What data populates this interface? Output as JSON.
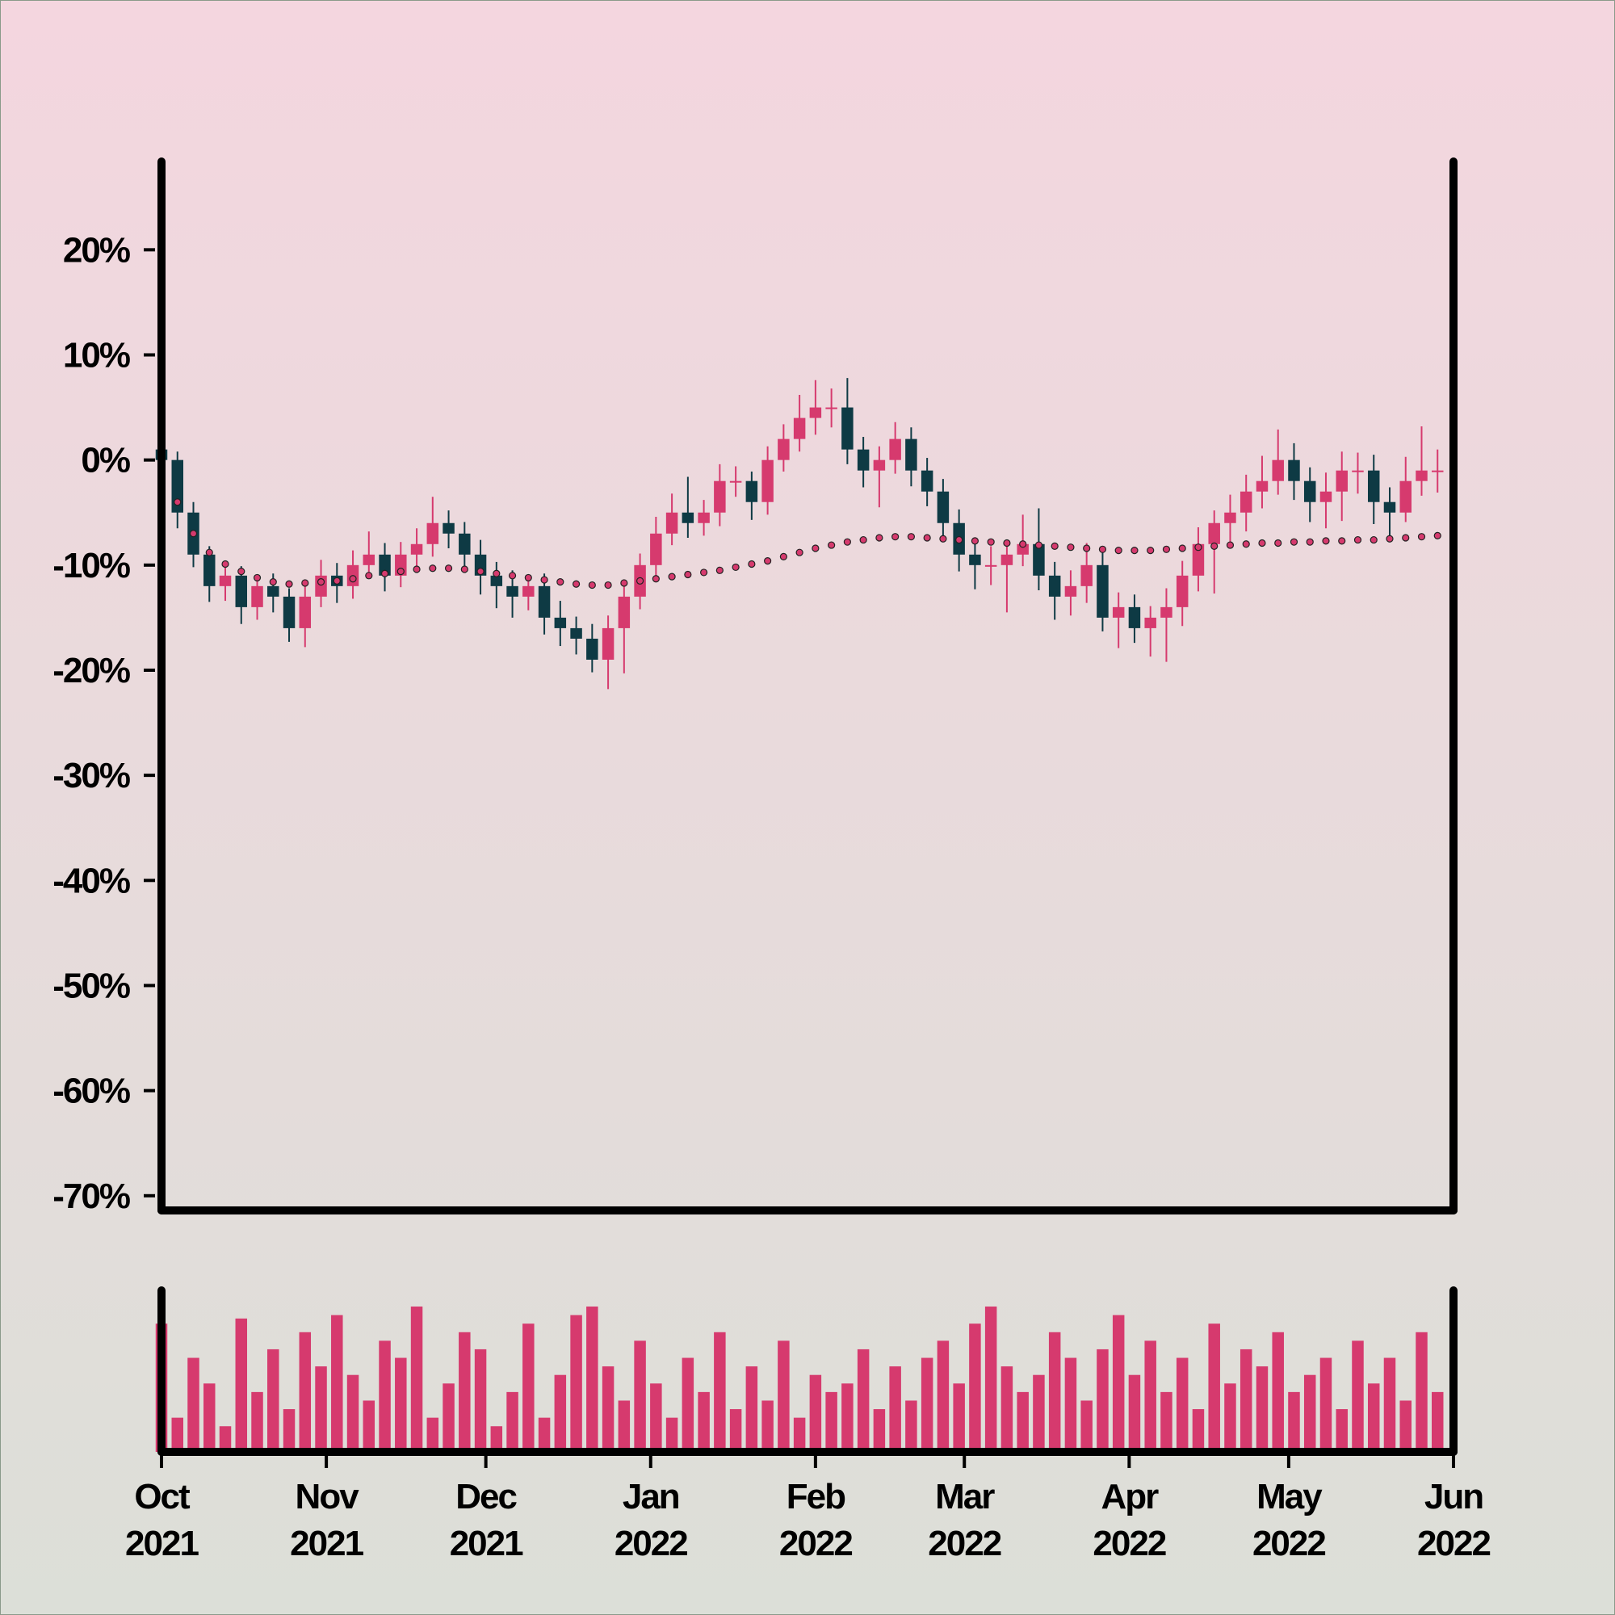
{
  "chart_data": {
    "type": "candlestick",
    "up_color": "#d63a6e",
    "down_color": "#0e3a44",
    "ma_color": "#d63a6e",
    "volume_color": "#d63a6e",
    "ylim": [
      -71.4,
      28.4
    ],
    "yticks": [
      {
        "value": -70,
        "label": "-70%"
      },
      {
        "value": -60,
        "label": "-60%"
      },
      {
        "value": -50,
        "label": "-50%"
      },
      {
        "value": -40,
        "label": "-40%"
      },
      {
        "value": -30,
        "label": "-30%"
      },
      {
        "value": -20,
        "label": "-20%"
      },
      {
        "value": -10,
        "label": "-10%"
      },
      {
        "value": 0,
        "label": "0%"
      },
      {
        "value": 10,
        "label": "10%"
      },
      {
        "value": 20,
        "label": "20%"
      }
    ],
    "xlim": [
      0,
      243
    ],
    "xticks": [
      {
        "value": 0,
        "label": "Oct 2021"
      },
      {
        "value": 31,
        "label": "Nov 2021"
      },
      {
        "value": 61,
        "label": "Dec 2021"
      },
      {
        "value": 92,
        "label": "Jan 2022"
      },
      {
        "value": 123,
        "label": "Feb 2022"
      },
      {
        "value": 151,
        "label": "Mar 2022"
      },
      {
        "value": 182,
        "label": "Apr 2022"
      },
      {
        "value": 212,
        "label": "May 2022"
      },
      {
        "value": 243,
        "label": "Jun 2022"
      }
    ],
    "x": [
      0,
      3,
      6,
      9,
      12,
      15,
      18,
      21,
      24,
      27,
      30,
      33,
      36,
      39,
      42,
      45,
      48,
      51,
      54,
      57,
      60,
      63,
      66,
      69,
      72,
      75,
      78,
      81,
      84,
      87,
      90,
      93,
      96,
      99,
      102,
      105,
      108,
      111,
      114,
      117,
      120,
      123,
      126,
      129,
      132,
      135,
      138,
      141,
      144,
      147,
      150,
      153,
      156,
      159,
      162,
      165,
      168,
      171,
      174,
      177,
      180,
      183,
      186,
      189,
      192,
      195,
      198,
      201,
      204,
      207,
      210,
      213,
      216,
      219,
      222,
      225,
      228,
      231,
      234,
      237,
      240
    ],
    "open": [
      1,
      0,
      -5,
      -9,
      -12,
      -11,
      -14,
      -12,
      -13,
      -16,
      -13,
      -11,
      -12,
      -10,
      -9,
      -11,
      -9,
      -8,
      -6,
      -7,
      -9,
      -11,
      -12,
      -13,
      -12,
      -15,
      -16,
      -17,
      -19,
      -16,
      -13,
      -10,
      -7,
      -5,
      -6,
      -5,
      -2,
      -2,
      -4,
      0,
      2,
      4,
      5,
      5,
      1,
      -1,
      0,
      2,
      -1,
      -3,
      -6,
      -9,
      -10,
      -10,
      -9,
      -8,
      -11,
      -13,
      -12,
      -10,
      -15,
      -14,
      -16,
      -15,
      -14,
      -11,
      -8,
      -6,
      -5,
      -3,
      -2,
      0,
      -2,
      -4,
      -3,
      -1,
      -1,
      -4,
      -5,
      -2,
      -1
    ],
    "high": [
      1.5,
      0.8,
      -4,
      -8.2,
      -10,
      -10.1,
      -11,
      -10.8,
      -12.2,
      -12,
      -9.5,
      -9.8,
      -8.6,
      -6.8,
      -7.9,
      -7.8,
      -6.5,
      -3.5,
      -4.8,
      -5.9,
      -7.6,
      -9.7,
      -10.5,
      -10.9,
      -10.8,
      -13.4,
      -14.9,
      -15.6,
      -14.8,
      -11.7,
      -8.9,
      -5.4,
      -3.2,
      -1.6,
      -3.8,
      -0.4,
      -0.6,
      -1.1,
      1.3,
      3.4,
      6.2,
      7.6,
      6.8,
      7.8,
      2.2,
      1.3,
      3.6,
      3.1,
      0.2,
      -1.8,
      -4.7,
      -7.5,
      -8.2,
      -7.8,
      -5.2,
      -4.6,
      -9.7,
      -10.5,
      -7.9,
      -8.7,
      -12.6,
      -12.8,
      -13.9,
      -12.2,
      -9.6,
      -6.4,
      -4.8,
      -3.3,
      -1.4,
      0.4,
      2.9,
      1.6,
      -0.7,
      -1.2,
      0.8,
      0.7,
      0.5,
      -2.6,
      0.3,
      3.2,
      1
    ],
    "low": [
      -1.5,
      -6.5,
      -10.2,
      -13.5,
      -13.4,
      -15.6,
      -15.2,
      -14.5,
      -17.3,
      -17.8,
      -14,
      -13.6,
      -13.2,
      -10.9,
      -12.5,
      -12.1,
      -10.3,
      -9.2,
      -8.4,
      -10.5,
      -12.8,
      -14.1,
      -15,
      -14.3,
      -16.6,
      -17.7,
      -18.5,
      -20.2,
      -21.8,
      -20.3,
      -14.2,
      -11.3,
      -8.1,
      -7.4,
      -7.2,
      -6.3,
      -3.5,
      -5.7,
      -5.2,
      -1.1,
      0.8,
      2.4,
      3.1,
      -0.4,
      -2.6,
      -4.5,
      -1.3,
      -2.5,
      -4.4,
      -7.6,
      -10.6,
      -12.3,
      -11.9,
      -14.5,
      -10.1,
      -12.4,
      -15.2,
      -14.8,
      -13.6,
      -16.3,
      -17.9,
      -17.4,
      -18.7,
      -19.2,
      -15.8,
      -12.5,
      -12.7,
      -7.9,
      -6.8,
      -4.6,
      -3.3,
      -3.8,
      -5.9,
      -6.5,
      -5.8,
      -3.2,
      -6.1,
      -7.2,
      -5.9,
      -3.4,
      -3.1
    ],
    "close": [
      0,
      -5,
      -9,
      -12,
      -11,
      -14,
      -12,
      -13,
      -16,
      -13,
      -11,
      -12,
      -10,
      -9,
      -11,
      -9,
      -8,
      -6,
      -7,
      -9,
      -11,
      -12,
      -13,
      -12,
      -15,
      -16,
      -17,
      -19,
      -16,
      -13,
      -10,
      -7,
      -5,
      -6,
      -5,
      -2,
      -2,
      -4,
      0,
      2,
      4,
      5,
      5,
      1,
      -1,
      0,
      2,
      -1,
      -3,
      -6,
      -9,
      -10,
      -10,
      -9,
      -8,
      -11,
      -13,
      -12,
      -10,
      -15,
      -14,
      -16,
      -15,
      -14,
      -11,
      -8,
      -6,
      -5,
      -3,
      -2,
      0,
      -2,
      -4,
      -3,
      -1,
      -1,
      -4,
      -5,
      -2,
      -1,
      -1
    ],
    "ma_values": [
      -1,
      -4,
      -7,
      -8.8,
      -9.9,
      -10.6,
      -11.2,
      -11.6,
      -11.8,
      -11.7,
      -11.6,
      -11.5,
      -11.3,
      -11,
      -10.8,
      -10.6,
      -10.4,
      -10.3,
      -10.3,
      -10.4,
      -10.6,
      -10.8,
      -11,
      -11.2,
      -11.4,
      -11.6,
      -11.8,
      -11.9,
      -11.9,
      -11.7,
      -11.5,
      -11.3,
      -11.1,
      -10.9,
      -10.7,
      -10.5,
      -10.2,
      -9.9,
      -9.6,
      -9.2,
      -8.8,
      -8.4,
      -8.1,
      -7.8,
      -7.6,
      -7.4,
      -7.3,
      -7.3,
      -7.4,
      -7.5,
      -7.6,
      -7.7,
      -7.8,
      -7.9,
      -8,
      -8.1,
      -8.2,
      -8.3,
      -8.4,
      -8.5,
      -8.6,
      -8.6,
      -8.6,
      -8.5,
      -8.4,
      -8.3,
      -8.2,
      -8.1,
      -8,
      -7.9,
      -7.9,
      -7.8,
      -7.8,
      -7.7,
      -7.7,
      -7.6,
      -7.6,
      -7.5,
      -7.4,
      -7.3,
      -7.2
    ],
    "volume": [
      75,
      20,
      55,
      40,
      15,
      78,
      35,
      60,
      25,
      70,
      50,
      80,
      45,
      30,
      65,
      55,
      85,
      20,
      40,
      70,
      60,
      15,
      35,
      75,
      20,
      45,
      80,
      85,
      50,
      30,
      65,
      40,
      20,
      55,
      35,
      70,
      25,
      50,
      30,
      65,
      20,
      45,
      35,
      40,
      60,
      25,
      50,
      30,
      55,
      65,
      40,
      75,
      85,
      50,
      35,
      45,
      70,
      55,
      30,
      60,
      80,
      45,
      65,
      35,
      55,
      25,
      75,
      40,
      60,
      50,
      70,
      35,
      45,
      55,
      25,
      65,
      40,
      55,
      30,
      70,
      35
    ]
  }
}
